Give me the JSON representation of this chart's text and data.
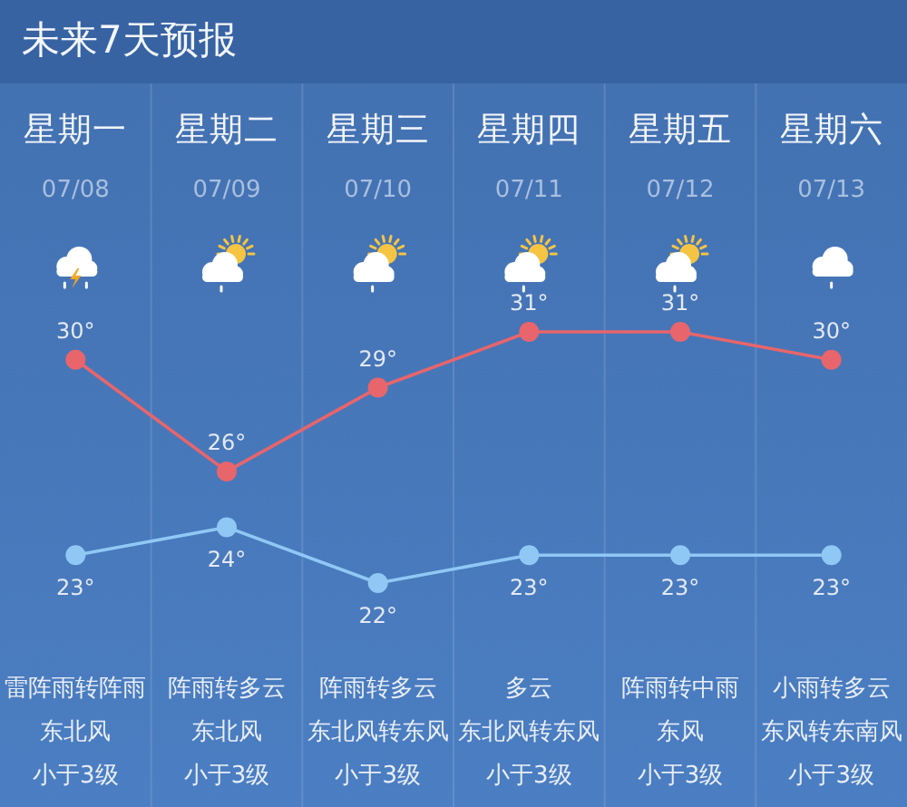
{
  "chart_data": {
    "type": "line",
    "title": "未来7天预报",
    "categories": [
      "星期一\n07/08",
      "星期二\n07/09",
      "星期三\n07/10",
      "星期四\n07/11",
      "星期五\n07/12",
      "星期六\n07/13"
    ],
    "series": [
      {
        "color": "#e8656b",
        "values": [
          30,
          26,
          29,
          31,
          31,
          30
        ],
        "value_labels": [
          "30°",
          "26°",
          "29°",
          "31°",
          "31°",
          "30°"
        ]
      },
      {
        "color": "#90c8f5",
        "values": [
          23,
          24,
          22,
          23,
          23,
          23
        ],
        "value_labels": [
          "23°",
          "24°",
          "22°",
          "23°",
          "23°",
          "23°"
        ]
      }
    ],
    "marker": "circle",
    "line_style": "solid",
    "tick_labels": "x",
    "annotations": [
      "雷阵雨转阵雨",
      "阵雨转多云",
      "阵雨转多云",
      "多云",
      "阵雨转中雨",
      "小雨转多云",
      "东北风",
      "东北风",
      "东北风转东风",
      "东北风转东风",
      "东风",
      "东风转东南风",
      "小于3级",
      "小于3级",
      "小于3级",
      "小于3级",
      "小于3级",
      "小于3级"
    ]
  }
}
